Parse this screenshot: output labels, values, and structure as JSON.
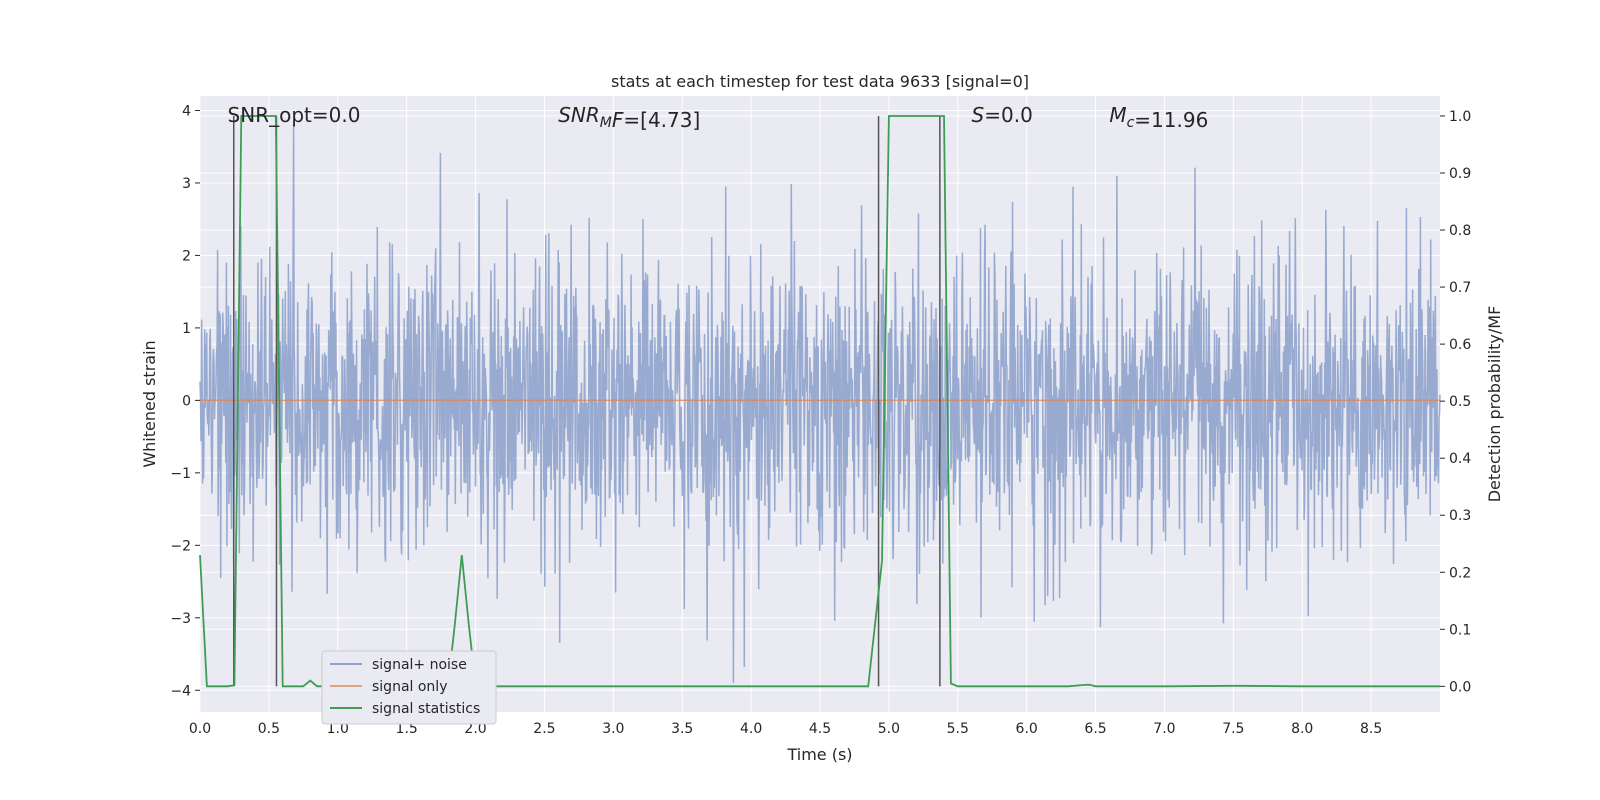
{
  "chart_data": {
    "type": "line",
    "title": "stats at each timestep for test data 9633 [signal=0]",
    "xlabel": "Time (s)",
    "ylabel": "Whitened strain",
    "y2label": "Detection probability/MF",
    "xlim": [
      0.0,
      9.0
    ],
    "ylim": [
      -4.3,
      4.2
    ],
    "y2lim": [
      -0.045,
      1.035
    ],
    "xticks": [
      "0.0",
      "0.5",
      "1.0",
      "1.5",
      "2.0",
      "2.5",
      "3.0",
      "3.5",
      "4.0",
      "4.5",
      "5.0",
      "5.5",
      "6.0",
      "6.5",
      "7.0",
      "7.5",
      "8.0",
      "8.5"
    ],
    "xtick_values": [
      0.0,
      0.5,
      1.0,
      1.5,
      2.0,
      2.5,
      3.0,
      3.5,
      4.0,
      4.5,
      5.0,
      5.5,
      6.0,
      6.5,
      7.0,
      7.5,
      8.0,
      8.5
    ],
    "yticks": [
      "−4",
      "−3",
      "−2",
      "−1",
      "0",
      "1",
      "2",
      "3",
      "4"
    ],
    "ytick_values": [
      -4,
      -3,
      -2,
      -1,
      0,
      1,
      2,
      3,
      4
    ],
    "y2ticks": [
      "0.0",
      "0.1",
      "0.2",
      "0.3",
      "0.4",
      "0.5",
      "0.6",
      "0.7",
      "0.8",
      "0.9",
      "1.0"
    ],
    "y2tick_values": [
      0.0,
      0.1,
      0.2,
      0.3,
      0.4,
      0.5,
      0.6,
      0.7,
      0.8,
      0.9,
      1.0
    ],
    "grid": true,
    "legend_position": "bottom-left",
    "annotations": [
      {
        "text": "SNR_opt=0.0",
        "x": 0.2
      },
      {
        "text_parts": [
          {
            "t": "SNR",
            "style": "italic"
          },
          {
            "t": "M",
            "style": "italic-sub"
          },
          {
            "t": "F",
            "style": "italic"
          },
          {
            "t": "=[4.73]",
            "style": "normal"
          }
        ],
        "x": 2.6
      },
      {
        "text_parts": [
          {
            "t": "S",
            "style": "italic"
          },
          {
            "t": "=0.0",
            "style": "normal"
          }
        ],
        "x": 5.6
      },
      {
        "text_parts": [
          {
            "t": "M",
            "style": "italic"
          },
          {
            "t": "c",
            "style": "italic-sub"
          },
          {
            "t": "=11.96",
            "style": "normal"
          }
        ],
        "x": 6.6
      }
    ],
    "series": [
      {
        "name": "signal+ noise",
        "color": "#8fa3cc",
        "kind": "noise",
        "amplitude": 3.9
      },
      {
        "name": "signal only",
        "color": "#dd8452",
        "kind": "flat",
        "value": 0.0
      },
      {
        "name": "signal statistics",
        "color": "#3f9c55",
        "axis": "y2",
        "x": [
          0.0,
          0.05,
          0.1,
          0.15,
          0.2,
          0.25,
          0.3,
          0.35,
          0.4,
          0.45,
          0.5,
          0.55,
          0.6,
          0.65,
          0.7,
          0.75,
          0.8,
          0.85,
          0.9,
          0.95,
          1.0,
          1.1,
          1.2,
          1.3,
          1.4,
          1.5,
          1.6,
          1.7,
          1.8,
          1.85,
          1.9,
          1.95,
          2.0,
          2.5,
          3.0,
          3.5,
          4.0,
          4.5,
          4.85,
          4.9,
          4.95,
          5.0,
          5.05,
          5.1,
          5.2,
          5.3,
          5.35,
          5.4,
          5.45,
          5.5,
          6.0,
          6.3,
          6.45,
          6.5,
          6.6,
          7.0,
          7.5,
          8.0,
          8.5,
          9.0
        ],
        "y": [
          0.23,
          0.0,
          0.0,
          0.0,
          0.0,
          0.002,
          1.0,
          1.0,
          1.0,
          1.0,
          1.0,
          1.0,
          0.0,
          0.0,
          0.0,
          0.0,
          0.01,
          0.0,
          0.0,
          0.0,
          0.0,
          0.0,
          0.0,
          0.0,
          0.0,
          0.0,
          0.0,
          0.0,
          0.0,
          0.11,
          0.23,
          0.11,
          0.0,
          0.0,
          0.0,
          0.0,
          0.0,
          0.0,
          0.0,
          0.11,
          0.22,
          1.0,
          1.0,
          1.0,
          1.0,
          1.0,
          1.0,
          1.0,
          0.005,
          0.0,
          0.0,
          0.0,
          0.003,
          0.0,
          0.0,
          0.0,
          0.001,
          0.0,
          0.0,
          0.0
        ]
      }
    ],
    "markers": [
      {
        "x": 0.245,
        "ymin": 0.0,
        "ymax": 1.0
      },
      {
        "x": 0.555,
        "ymin": 0.0,
        "ymax": 1.0
      },
      {
        "x": 4.925,
        "ymin": 0.0,
        "ymax": 1.0
      },
      {
        "x": 5.37,
        "ymin": 0.0,
        "ymax": 1.0
      }
    ]
  },
  "colors": {
    "plot_bg": "#eaeaf2",
    "grid": "#ffffff",
    "text": "#262626",
    "marker": "#555555"
  }
}
